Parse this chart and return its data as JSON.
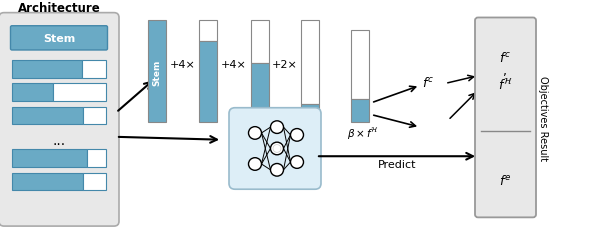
{
  "blue_color": "#6aaac5",
  "light_blue_bg": "#ddeef7",
  "light_gray": "#e8e8e8",
  "arch_title": "Architecture",
  "stem_label": "Stem",
  "obj_result_label": "Objectives Result",
  "predict_label": "Predict",
  "fc_label": "$f^c$",
  "fH_label": "$f^{\\mathcal{H}}$",
  "fe_label": "$f^e$",
  "plus4x_1": "+4×",
  "plus4x_2": "+4×",
  "plus2x": "+2×",
  "beta_fH": "$\\beta \\times f^{\\mathcal{H}}$",
  "figw": 5.9,
  "figh": 2.3,
  "dpi": 100
}
